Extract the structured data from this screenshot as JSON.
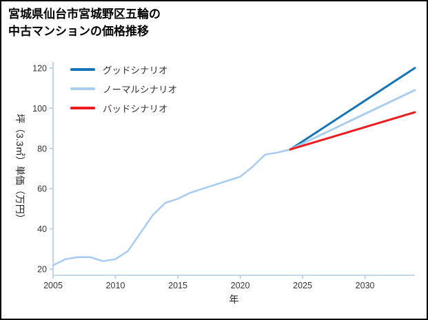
{
  "page": {
    "background": "#ffffff",
    "border_color": "#000000"
  },
  "title": {
    "line1": "宮城県仙台市宮城野区五輪の",
    "line2": "中古マンションの価格推移"
  },
  "chart_data": {
    "type": "line",
    "title": "宮城県仙台市宮城野区五輪の中古マンションの価格推移",
    "xlabel": "年",
    "ylabel": "坪（3.3㎡）単価（万円）",
    "xlim": [
      2005,
      2034
    ],
    "ylim": [
      17,
      123
    ],
    "xticks": [
      2005,
      2010,
      2015,
      2020,
      2025,
      2030
    ],
    "yticks": [
      20,
      40,
      60,
      80,
      100,
      120
    ],
    "grid": false,
    "legend_position": "upper-left",
    "axis_color": "#aecbe8",
    "tick_label_color": "#333333",
    "series": [
      {
        "id": "history",
        "label": "",
        "color": "#a9cdf0",
        "width": 2.6,
        "x": [
          2005,
          2006,
          2007,
          2008,
          2009,
          2010,
          2011,
          2012,
          2013,
          2014,
          2015,
          2016,
          2017,
          2018,
          2019,
          2020,
          2021,
          2022,
          2023,
          2024
        ],
        "y": [
          22,
          25,
          26,
          26,
          24,
          25,
          29,
          38,
          47,
          53,
          55,
          58,
          60,
          62,
          64,
          66,
          71,
          77,
          78,
          79.5
        ]
      },
      {
        "id": "good-scenario",
        "label": "グッドシナリオ",
        "color": "#1273b6",
        "width": 3,
        "x": [
          2024,
          2034
        ],
        "y": [
          79.5,
          120
        ]
      },
      {
        "id": "normal-scenario",
        "label": "ノーマルシナリオ",
        "color": "#a9cdf0",
        "width": 3,
        "x": [
          2024,
          2034
        ],
        "y": [
          79.5,
          109
        ]
      },
      {
        "id": "bad-scenario",
        "label": "バッドシナリオ",
        "color": "#ef1a1d",
        "width": 3,
        "x": [
          2024,
          2034
        ],
        "y": [
          79.5,
          98
        ]
      }
    ],
    "legend": [
      {
        "label": "グッドシナリオ",
        "color": "#1273b6"
      },
      {
        "label": "ノーマルシナリオ",
        "color": "#a9cdf0"
      },
      {
        "label": "バッドシナリオ",
        "color": "#ef1a1d"
      }
    ]
  }
}
